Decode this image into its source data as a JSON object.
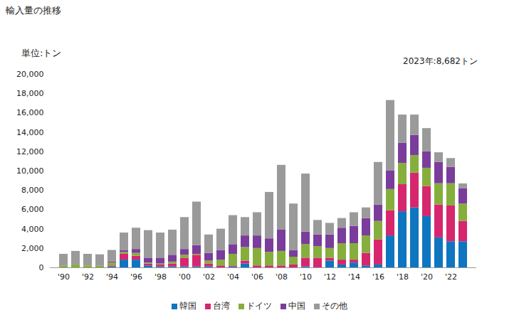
{
  "chart_data": {
    "type": "bar",
    "stacked": true,
    "title": "輸入量の推移",
    "subtitle": "単位:トン",
    "annotation": "2023年:8,682トン",
    "legend": "bottom",
    "grid": false,
    "categories": [
      "'90",
      null,
      "'92",
      null,
      "'94",
      null,
      "'96",
      null,
      "'98",
      null,
      "'00",
      null,
      "'02",
      null,
      "'04",
      null,
      "'06",
      null,
      "'08",
      null,
      "'10",
      null,
      "'12",
      null,
      "'14",
      null,
      "'16",
      null,
      "'18",
      null,
      "'20",
      null,
      "'22",
      null
    ],
    "ylim": [
      0,
      20000
    ],
    "yticks": [
      0,
      {
        "value": 2000,
        "label": "2,000"
      },
      {
        "value": 4000,
        "label": "4,000"
      },
      {
        "value": 6000,
        "label": "6,000"
      },
      {
        "value": 8000,
        "label": "8,000"
      },
      {
        "value": 10000,
        "label": "10,000"
      },
      {
        "value": 12000,
        "label": "12,000"
      },
      {
        "value": 14000,
        "label": "14,000"
      },
      {
        "value": 16000,
        "label": "16,000"
      },
      {
        "value": 18000,
        "label": "18,000"
      },
      {
        "value": 20000,
        "label": "20,000"
      }
    ],
    "series": [
      {
        "name": "韓国",
        "color": "#0e75c0",
        "values": [
          0,
          0,
          0,
          0,
          100,
          800,
          800,
          200,
          100,
          100,
          100,
          100,
          100,
          0,
          100,
          400,
          0,
          0,
          0,
          0,
          100,
          0,
          700,
          300,
          500,
          200,
          300,
          3300,
          5800,
          6200,
          5300,
          3100,
          2700,
          2700
        ]
      },
      {
        "name": "台湾",
        "color": "#d6266e",
        "values": [
          0,
          0,
          0,
          0,
          100,
          600,
          400,
          200,
          200,
          300,
          900,
          1200,
          300,
          200,
          100,
          300,
          200,
          200,
          200,
          300,
          900,
          1000,
          300,
          500,
          300,
          1300,
          2600,
          2600,
          2800,
          3600,
          3100,
          3400,
          3700,
          2100
        ]
      },
      {
        "name": "ドイツ",
        "color": "#86ae3c",
        "values": [
          200,
          300,
          200,
          200,
          300,
          200,
          300,
          100,
          100,
          200,
          300,
          100,
          300,
          600,
          1200,
          1400,
          1800,
          1400,
          1500,
          800,
          1400,
          1200,
          1000,
          1700,
          1700,
          1800,
          1900,
          2200,
          2200,
          1800,
          1900,
          2200,
          2300,
          1800
        ]
      },
      {
        "name": "中国",
        "color": "#7a3d9b",
        "values": [
          0,
          0,
          0,
          0,
          100,
          200,
          400,
          500,
          600,
          700,
          600,
          900,
          800,
          1000,
          1000,
          1200,
          1300,
          1400,
          2200,
          700,
          1300,
          1200,
          1400,
          1600,
          1800,
          1800,
          1700,
          1900,
          2100,
          2100,
          1700,
          2200,
          1700,
          1600
        ]
      },
      {
        "name": "その他",
        "color": "#9a9a9a",
        "values": [
          1200,
          1400,
          1200,
          1150,
          1200,
          1800,
          2200,
          2850,
          2600,
          2600,
          3300,
          4500,
          1900,
          2200,
          3000,
          1900,
          2400,
          4800,
          6700,
          4800,
          6000,
          1500,
          1200,
          1000,
          1400,
          1100,
          4400,
          7300,
          2900,
          2100,
          2400,
          1000,
          900,
          482
        ]
      }
    ]
  }
}
